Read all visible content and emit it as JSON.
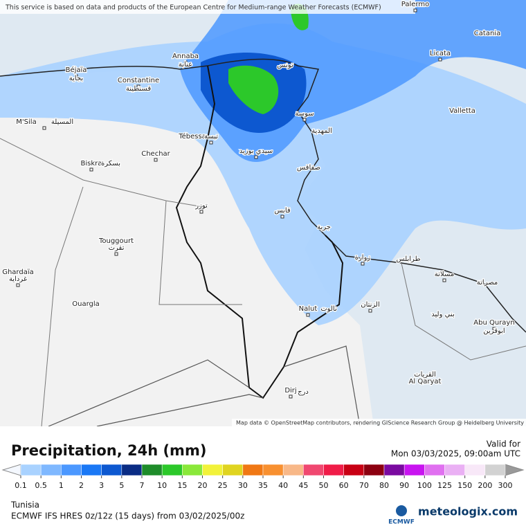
{
  "notice": "This service is based on data and products of the European Centre for Medium-range Weather Forecasts (ECMWF)",
  "attribution": "Map data © OpenStreetMap contributors, rendering GIScience Research Group @ Heidelberg University",
  "places": [
    "Palermo",
    "Catania",
    "Licata",
    "Valletta",
    "Annaba",
    "عنابة",
    "Béjaïa",
    "بجاية",
    "Constantine",
    "قسنطينة",
    "M'Sila",
    "المسيلة",
    "Biskra",
    "بسكرة",
    "Chechar",
    "Tébessa",
    "تبسة",
    "تونس",
    "سوسة",
    "المهدية",
    "سيدي بوزيد",
    "صفاقس",
    "قابس",
    "جربة",
    "توزر",
    "Touggourt",
    "تقرت",
    "Ghardaïa",
    "غرداية",
    "Ouargla",
    "زوارة",
    "طرابلس",
    "مسلاتة",
    "مصراتة",
    "Nalut",
    "نالوت",
    "الزنتان",
    "بني وليد",
    "Abu Qurayn",
    "ابوقرين",
    "القريات",
    "Al Qaryat",
    "Dirj",
    "درج"
  ],
  "legend": {
    "title": "Precipitation, 24h (mm)",
    "valid_label": "Valid for",
    "valid_time": "Mon 03/03/2025, 09:00am UTC",
    "ticks": [
      0.1,
      0.5,
      1,
      2,
      3,
      5,
      7,
      10,
      15,
      20,
      25,
      30,
      35,
      40,
      45,
      50,
      60,
      70,
      80,
      90,
      100,
      125,
      150,
      200,
      300
    ],
    "colors": [
      "#a9d2ff",
      "#7fb8ff",
      "#4c98ff",
      "#1a78f5",
      "#0d58d0",
      "#0a2c84",
      "#1e8c2a",
      "#2cc82a",
      "#8ae83a",
      "#f2f23a",
      "#e0d420",
      "#f07814",
      "#f89030",
      "#f8b888",
      "#f04870",
      "#f01c48",
      "#c80014",
      "#8c0010",
      "#7a0aa0",
      "#c814f0",
      "#e070f0",
      "#eab0f4",
      "#f8e8f8",
      "#d2d2d2"
    ],
    "region": "Tunisia",
    "model": "ECMWF IFS HRES 0z/12z (15 days) from  03/02/2025/00z",
    "logo_ecmwf": "ECMWF",
    "logo_site": "meteologix.com"
  }
}
